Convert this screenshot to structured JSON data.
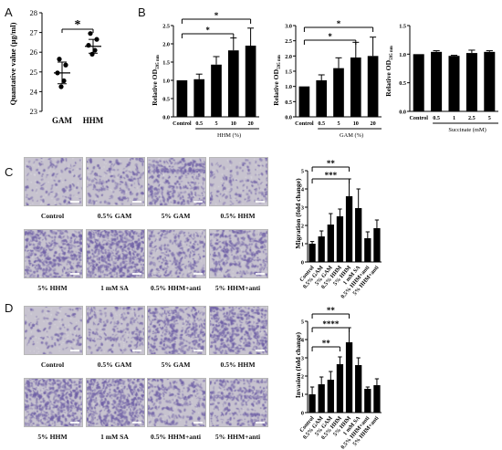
{
  "panels": {
    "A": {
      "letter": "A",
      "star": "*",
      "ylabel": "Quantative value (µg/ml)",
      "yticks": [
        "23",
        "24",
        "25",
        "26",
        "27",
        "28"
      ],
      "categories": [
        "GAM",
        "HHM"
      ]
    },
    "B": {
      "letter": "B",
      "sub": [
        {
          "ylabel": "Relative OD",
          "ysub": "595 nm",
          "yticks": [
            "0.0",
            "0.5",
            "1.0",
            "1.5",
            "2.0",
            "2.5"
          ],
          "xticks": [
            "Control",
            "0.5",
            "5",
            "10",
            "20"
          ],
          "xlabel": "HHM (%)",
          "stars": [
            "*",
            "*"
          ]
        },
        {
          "ylabel": "Relative OD",
          "ysub": "595 nm",
          "yticks": [
            "0.0",
            "0.5",
            "1.0",
            "1.5",
            "2.0",
            "2.5",
            "3.0"
          ],
          "xticks": [
            "Control",
            "0.5",
            "5",
            "10",
            "20"
          ],
          "xlabel": "GAM (%)",
          "stars": [
            "*",
            "*"
          ]
        },
        {
          "ylabel": "Relative OD",
          "ysub": "595 nm",
          "yticks": [
            "0.0",
            "0.5",
            "1.0",
            "1.5"
          ],
          "xticks": [
            "Control",
            "0.5",
            "1",
            "2.5",
            "5"
          ],
          "xlabel": "Succinate (mM)",
          "stars": []
        }
      ]
    },
    "C": {
      "letter": "C",
      "captions": [
        "Control",
        "0.5% GAM",
        "5% GAM",
        "0.5% HHM",
        "5% HHM",
        "1 mM SA",
        "0.5% HHM+anti",
        "5% HHM+anti"
      ],
      "ylabel": "Migration (fold change)",
      "yticks": [
        "0",
        "1",
        "2",
        "3",
        "4",
        "5"
      ],
      "xticks": [
        "Control",
        "0.5% GAM",
        "5% GAM",
        "0.5% HHM",
        "5% HHM",
        "1 mM SA",
        "0.5% HHM+anti",
        "5% HHM+anti"
      ],
      "stars": [
        "**",
        "***"
      ]
    },
    "D": {
      "letter": "D",
      "captions": [
        "Control",
        "0.5% GAM",
        "5% GAM",
        "0.5% HHM",
        "5% HHM",
        "1 mM SA",
        "0.5% HHM+anti",
        "5% HHM+anti"
      ],
      "ylabel": "Invasion (fold change)",
      "yticks": [
        "0",
        "1",
        "2",
        "3",
        "4",
        "5"
      ],
      "xticks": [
        "Control",
        "0.5% GAM",
        "5% GAM",
        "0.5% HHM",
        "5% HHM",
        "1 mM SA",
        "0.5% HHM+anti",
        "5% HHM+anti"
      ],
      "stars": [
        "**",
        "****",
        "**"
      ]
    }
  },
  "colors": {
    "bar": "#000000",
    "micrograph_light": "#c7c3cf",
    "micrograph_purple": "#6e5fa6"
  },
  "chart_data": [
    {
      "type": "scatter",
      "panel": "A",
      "categories": [
        "GAM",
        "HHM"
      ],
      "points": [
        [
          25.65,
          25.35,
          24.95,
          24.55,
          24.25
        ],
        [
          26.95,
          26.65,
          26.35,
          26.1,
          25.9
        ]
      ],
      "means": [
        24.95,
        26.3
      ],
      "sd": [
        0.55,
        0.35
      ],
      "ylim": [
        23,
        28
      ],
      "ylabel": "Quantative value (µg/ml)"
    },
    {
      "type": "bar",
      "panel": "B-1",
      "categories": [
        "Control",
        "0.5",
        "5",
        "10",
        "20"
      ],
      "values": [
        1.0,
        1.03,
        1.43,
        1.82,
        1.95
      ],
      "errors": [
        0.0,
        0.14,
        0.22,
        0.34,
        0.48
      ],
      "ylim": [
        0,
        2.5
      ],
      "xlabel": "HHM (%)",
      "ylabel": "Relative OD 595 nm"
    },
    {
      "type": "bar",
      "panel": "B-2",
      "categories": [
        "Control",
        "0.5",
        "5",
        "10",
        "20"
      ],
      "values": [
        1.0,
        1.2,
        1.6,
        1.95,
        2.0
      ],
      "errors": [
        0.0,
        0.18,
        0.34,
        0.5,
        0.62
      ],
      "ylim": [
        0,
        3.0
      ],
      "xlabel": "GAM (%)",
      "ylabel": "Relative OD 595 nm"
    },
    {
      "type": "bar",
      "panel": "B-3",
      "categories": [
        "Control",
        "0.5",
        "1",
        "2.5",
        "5"
      ],
      "values": [
        1.0,
        1.04,
        0.97,
        1.02,
        1.04
      ],
      "errors": [
        0.0,
        0.02,
        0.01,
        0.05,
        0.02
      ],
      "ylim": [
        0,
        1.5
      ],
      "xlabel": "Succinate (mM)",
      "ylabel": "Relative OD 595 nm"
    },
    {
      "type": "bar",
      "panel": "C",
      "categories": [
        "Control",
        "0.5% GAM",
        "5% GAM",
        "0.5% HHM",
        "5% HHM",
        "1 mM SA",
        "0.5% HHM+anti",
        "5% HHM+anti"
      ],
      "values": [
        1.0,
        1.4,
        2.05,
        2.5,
        3.6,
        2.95,
        1.3,
        1.85
      ],
      "errors": [
        0.12,
        0.3,
        0.6,
        0.4,
        0.95,
        1.05,
        0.35,
        0.45
      ],
      "ylim": [
        0,
        5
      ],
      "ylabel": "Migration (fold change)"
    },
    {
      "type": "bar",
      "panel": "D",
      "categories": [
        "Control",
        "0.5% GAM",
        "5% GAM",
        "0.5% HHM",
        "5% HHM",
        "1 mM SA",
        "0.5% HHM+anti",
        "5% HHM+anti"
      ],
      "values": [
        1.0,
        1.55,
        1.8,
        2.65,
        3.85,
        2.6,
        1.3,
        1.5
      ],
      "errors": [
        0.4,
        0.4,
        0.45,
        0.4,
        0.8,
        0.4,
        0.1,
        0.35
      ],
      "ylim": [
        0,
        5
      ],
      "ylabel": "Invasion (fold change)"
    }
  ]
}
